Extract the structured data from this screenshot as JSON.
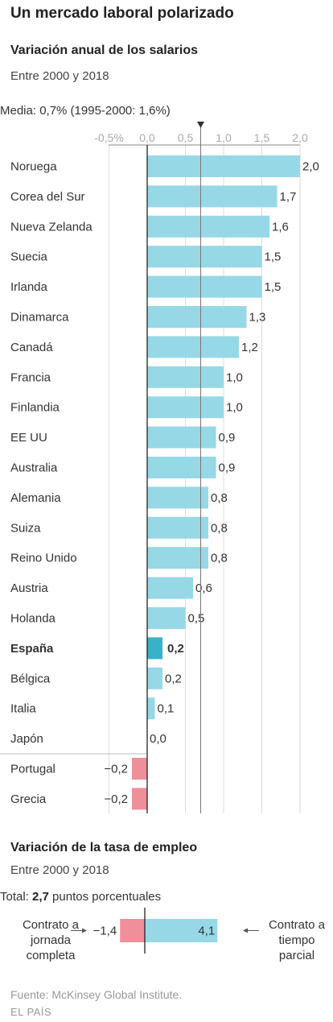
{
  "title": "Un mercado laboral polarizado",
  "section1": {
    "title": "Variación anual de los salarios",
    "subtitle": "Entre 2000 y 2018",
    "mean_label": "Media: 0,7% (1995-2000: 1,6%)"
  },
  "section2": {
    "title": "Variación de la tasa de empleo",
    "subtitle": "Entre 2000 y 2018",
    "total_prefix": "Total: ",
    "total_value": "2,7",
    "total_suffix": " puntos porcentuales",
    "left_note": "Contrato a jornada completa",
    "right_note": "Contrato a tiempo parcial"
  },
  "source": "Fuente: McKinsey Global Institute.",
  "brand": "EL PAÍS",
  "colors": {
    "positive": "#96d8e6",
    "highlight": "#38b1c9",
    "negative": "#f08e9a",
    "grid": "#dddddd",
    "axis": "#222222"
  },
  "chart_data": [
    {
      "type": "bar",
      "orientation": "horizontal",
      "title": "Variación anual de los salarios",
      "xlim": [
        -0.5,
        2.0
      ],
      "ticks": [
        -0.5,
        0.0,
        0.5,
        1.0,
        1.5,
        2.0
      ],
      "tick_labels": [
        "-0,5%",
        "0,0",
        "0,5",
        "1,0",
        "1,5",
        "2,0"
      ],
      "mean": 0.7,
      "highlight": "España",
      "grid": true,
      "categories": [
        "Noruega",
        "Corea del Sur",
        "Nueva Zelanda",
        "Suecia",
        "Irlanda",
        "Dinamarca",
        "Canadá",
        "Francia",
        "Finlandia",
        "EE UU",
        "Australia",
        "Alemania",
        "Suiza",
        "Reino Unido",
        "Austria",
        "Holanda",
        "España",
        "Bélgica",
        "Italia",
        "Japón",
        "Portugal",
        "Grecia"
      ],
      "values": [
        2.0,
        1.7,
        1.6,
        1.5,
        1.5,
        1.3,
        1.2,
        1.0,
        1.0,
        0.9,
        0.9,
        0.8,
        0.8,
        0.8,
        0.6,
        0.5,
        0.2,
        0.2,
        0.1,
        0.0,
        -0.2,
        -0.2
      ],
      "value_labels": [
        "2,0",
        "1,7",
        "1,6",
        "1,5",
        "1,5",
        "1,3",
        "1,2",
        "1,0",
        "1,0",
        "0,9",
        "0,9",
        "0,8",
        "0,8",
        "0,8",
        "0,6",
        "0,5",
        "0,2",
        "0,2",
        "0,1",
        "0,0",
        "−0,2",
        "−0,2"
      ]
    },
    {
      "type": "bar",
      "orientation": "horizontal",
      "stacked": true,
      "title": "Variación de la tasa de empleo",
      "series": [
        {
          "name": "Contrato a jornada completa",
          "values": [
            -1.4
          ],
          "value_label": "−1,4"
        },
        {
          "name": "Contrato a tiempo parcial",
          "values": [
            4.1
          ],
          "value_label": "4,1"
        }
      ],
      "total": 2.7
    }
  ]
}
